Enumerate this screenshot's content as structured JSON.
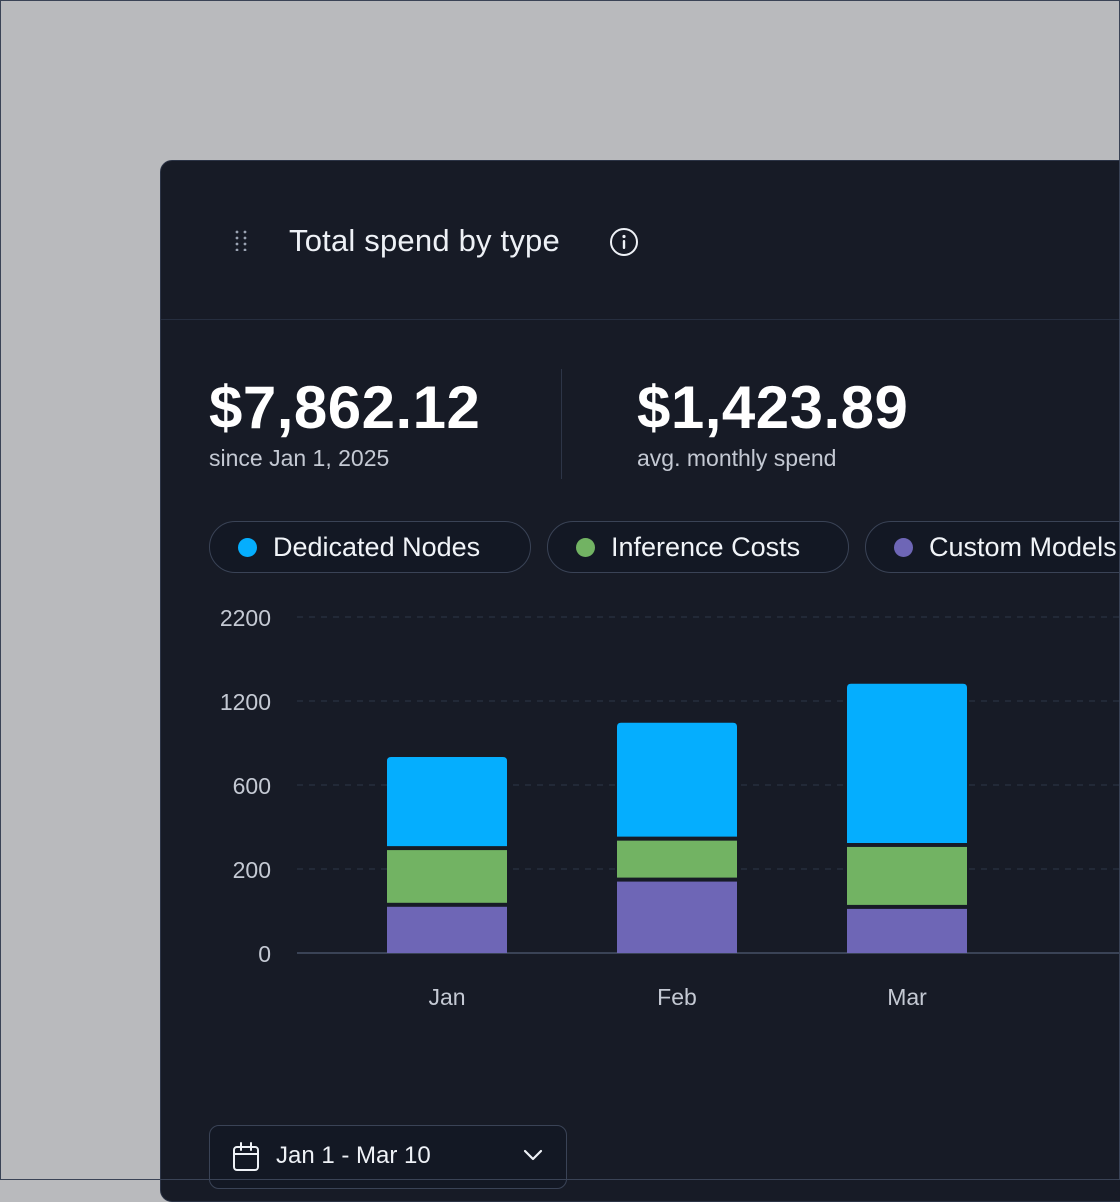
{
  "card": {
    "title": "Total spend by type",
    "drag_icon": "grip-dots-icon",
    "info_icon": "info-icon"
  },
  "stats": [
    {
      "value": "$7,862.12",
      "label": "since Jan 1, 2025"
    },
    {
      "value": "$1,423.89",
      "label": "avg. monthly spend"
    }
  ],
  "legend": [
    {
      "label": "Dedicated Nodes",
      "color": "#05aefe"
    },
    {
      "label": "Inference Costs",
      "color": "#72b363"
    },
    {
      "label": "Custom Models",
      "color": "#6e66b6"
    }
  ],
  "chart_data": {
    "type": "bar",
    "stacked": true,
    "categories": [
      "Jan",
      "Feb",
      "Mar"
    ],
    "series": [
      {
        "name": "Custom Models",
        "color": "#6e66b6",
        "values": [
          110,
          170,
          105
        ]
      },
      {
        "name": "Inference Costs",
        "color": "#72b363",
        "values": [
          180,
          165,
          200
        ]
      },
      {
        "name": "Dedicated Nodes",
        "color": "#05aefe",
        "values": [
          510,
          710,
          1100
        ]
      }
    ],
    "y_ticks": [
      "0",
      "200",
      "600",
      "1200",
      "2200"
    ],
    "y_tick_values": [
      0,
      200,
      600,
      1200,
      2200
    ],
    "grid": true
  },
  "date_range": {
    "label": "Jan 1 - Mar 10",
    "icon": "calendar-icon",
    "chevron": "chevron-down-icon"
  }
}
